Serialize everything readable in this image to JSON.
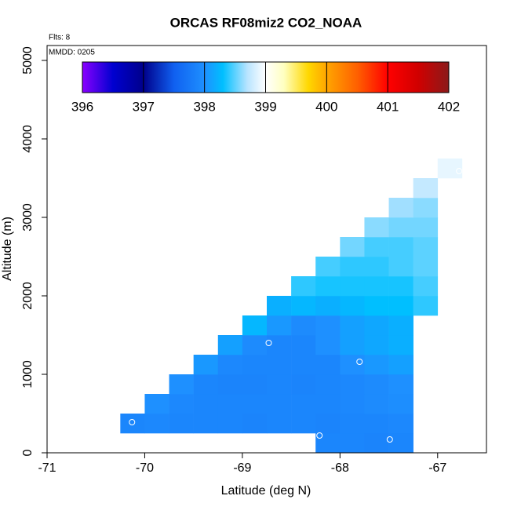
{
  "chart_data": {
    "type": "heatmap",
    "title": "ORCAS RF08miz2 CO2_NOAA",
    "annotations": [
      "Flts: 8",
      "MMDD: 0205"
    ],
    "xlabel": "Latitude (deg N)",
    "ylabel": "Altitude (m)",
    "xlim": [
      -71,
      -66.5
    ],
    "xticks": [
      -71,
      -70,
      -69,
      -68,
      -67
    ],
    "ylim": [
      0,
      5190
    ],
    "yticks": [
      0,
      1000,
      2000,
      3000,
      4000,
      5000
    ],
    "x_edges": [
      -70.25,
      -70,
      -69.75,
      -69.5,
      -69.25,
      -69,
      -68.75,
      -68.5,
      -68.25,
      -68,
      -67.75,
      -67.5,
      -67.25,
      -67,
      -66.75
    ],
    "y_edges": [
      0,
      250,
      500,
      750,
      1000,
      1250,
      1500,
      1750,
      2000,
      2250,
      2500,
      2750,
      3000,
      3250,
      3500,
      3750
    ],
    "z": [
      [
        null,
        null,
        null,
        null,
        null,
        null,
        null,
        null,
        397.9,
        397.9,
        397.88,
        397.9,
        null,
        null
      ],
      [
        397.9,
        397.92,
        397.9,
        397.9,
        397.9,
        397.88,
        397.9,
        397.9,
        397.88,
        397.9,
        397.9,
        397.92,
        null,
        null
      ],
      [
        null,
        398.0,
        397.92,
        397.9,
        397.9,
        397.9,
        397.9,
        397.9,
        397.9,
        397.92,
        397.95,
        397.98,
        null,
        null
      ],
      [
        null,
        null,
        398.0,
        397.9,
        397.88,
        397.88,
        397.9,
        397.88,
        397.9,
        397.92,
        397.95,
        398.0,
        null,
        null
      ],
      [
        null,
        null,
        null,
        398.05,
        397.92,
        397.9,
        397.9,
        397.9,
        397.9,
        398.0,
        398.05,
        398.1,
        null,
        null
      ],
      [
        null,
        null,
        null,
        null,
        398.1,
        397.95,
        397.9,
        397.9,
        398.0,
        398.1,
        398.15,
        398.2,
        null,
        null
      ],
      [
        null,
        null,
        null,
        null,
        null,
        398.25,
        398.05,
        397.95,
        398.0,
        398.1,
        398.15,
        398.2,
        null,
        null
      ],
      [
        null,
        null,
        null,
        null,
        null,
        null,
        398.2,
        398.25,
        398.2,
        398.25,
        398.3,
        398.3,
        398.4,
        null
      ],
      [
        null,
        null,
        null,
        null,
        null,
        null,
        null,
        398.4,
        398.35,
        398.35,
        398.35,
        398.35,
        398.45,
        null
      ],
      [
        null,
        null,
        null,
        null,
        null,
        null,
        null,
        null,
        398.45,
        398.4,
        398.4,
        398.45,
        398.5,
        null
      ],
      [
        null,
        null,
        null,
        null,
        null,
        null,
        null,
        null,
        null,
        398.55,
        398.45,
        398.45,
        398.5,
        null
      ],
      [
        null,
        null,
        null,
        null,
        null,
        null,
        null,
        null,
        null,
        null,
        398.6,
        398.55,
        398.55,
        null
      ],
      [
        null,
        null,
        null,
        null,
        null,
        null,
        null,
        null,
        null,
        null,
        null,
        398.65,
        398.6,
        null
      ],
      [
        null,
        null,
        null,
        null,
        null,
        null,
        null,
        null,
        null,
        null,
        null,
        null,
        398.75,
        null
      ],
      [
        null,
        null,
        null,
        null,
        null,
        null,
        null,
        null,
        null,
        null,
        null,
        null,
        null,
        398.9
      ]
    ],
    "points": {
      "x": [
        -70.13,
        -68.73,
        -67.8,
        -68.21,
        -67.49,
        -66.78
      ],
      "y": [
        390,
        1400,
        1160,
        220,
        170,
        3590
      ],
      "color": "#ffffff"
    },
    "clim": [
      396,
      402
    ],
    "cticks": [
      396,
      397,
      398,
      399,
      400,
      401,
      402
    ],
    "colorscale": [
      [
        396,
        "#8a00ff"
      ],
      [
        396.5,
        "#0000d0"
      ],
      [
        397,
        "#00008b"
      ],
      [
        397.5,
        "#1060f0"
      ],
      [
        398,
        "#1e90ff"
      ],
      [
        398.3,
        "#00bfff"
      ],
      [
        398.7,
        "#b8e4ff"
      ],
      [
        399,
        "#ffffff"
      ],
      [
        399.3,
        "#ffffc0"
      ],
      [
        399.7,
        "#ffd700"
      ],
      [
        400,
        "#ffa500"
      ],
      [
        400.5,
        "#ff6000"
      ],
      [
        401,
        "#ff0000"
      ],
      [
        401.5,
        "#d00000"
      ],
      [
        402,
        "#8b1a1a"
      ]
    ]
  }
}
